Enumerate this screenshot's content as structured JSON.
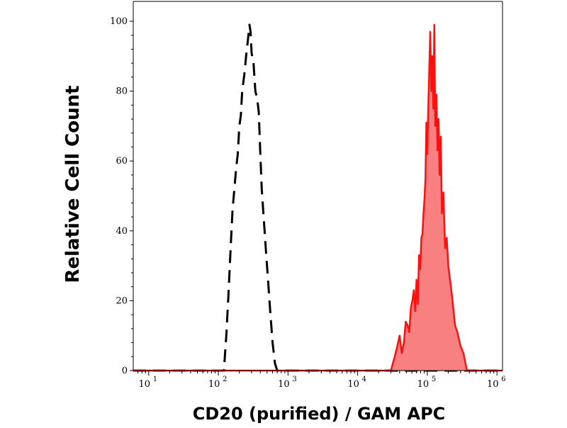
{
  "chart_data": {
    "type": "area",
    "xlabel": "CD20 (purified) / GAM APC",
    "ylabel": "Relative Cell Count",
    "xscale": "log",
    "xlim": [
      6,
      1200000
    ],
    "ylim": [
      0,
      100
    ],
    "grid": false,
    "x_ticks": [
      {
        "value": 10,
        "base": "10",
        "exp": "1"
      },
      {
        "value": 100,
        "base": "10",
        "exp": "2"
      },
      {
        "value": 1000,
        "base": "10",
        "exp": "3"
      },
      {
        "value": 10000,
        "base": "10",
        "exp": "4"
      },
      {
        "value": 100000,
        "base": "10",
        "exp": "5"
      },
      {
        "value": 1000000,
        "base": "10",
        "exp": "6"
      }
    ],
    "y_ticks": [
      {
        "value": 0,
        "label": "0"
      },
      {
        "value": 20,
        "label": "20"
      },
      {
        "value": 40,
        "label": "40"
      },
      {
        "value": 60,
        "label": "60"
      },
      {
        "value": 80,
        "label": "80"
      },
      {
        "value": 100,
        "label": "100"
      }
    ],
    "series": [
      {
        "style": "dashed",
        "color": "#000000",
        "fill": "none",
        "x": [
          6,
          120,
          130,
          140,
          150,
          160,
          170,
          180,
          190,
          200,
          210,
          220,
          230,
          240,
          250,
          260,
          270,
          280,
          290,
          300,
          310,
          320,
          340,
          360,
          380,
          400,
          420,
          450,
          480,
          520,
          560,
          600,
          650,
          700,
          1200000
        ],
        "y": [
          0,
          0,
          10,
          22,
          35,
          46,
          52,
          58,
          62,
          70,
          73,
          80,
          83,
          86,
          90,
          93,
          96,
          99,
          97,
          91,
          89,
          88,
          80,
          78,
          74,
          62,
          52,
          43,
          35,
          25,
          16,
          8,
          2,
          0,
          0
        ]
      },
      {
        "style": "solid",
        "color": "#ff1010",
        "fill": "#f88080",
        "x": [
          6,
          30000,
          34000,
          37000,
          40000,
          43000,
          46000,
          49000,
          52000,
          55000,
          58000,
          61000,
          64000,
          67000,
          70000,
          73000,
          76000,
          79000,
          82000,
          85000,
          88000,
          91000,
          94000,
          97000,
          100000,
          103000,
          106000,
          110000,
          114000,
          118000,
          122000,
          126000,
          130000,
          135000,
          140000,
          145000,
          150000,
          156000,
          162000,
          170000,
          180000,
          190000,
          200000,
          215000,
          230000,
          250000,
          270000,
          300000,
          330000,
          370000,
          1200000
        ],
        "y": [
          0,
          0,
          4,
          7,
          10,
          5,
          8,
          14,
          13,
          11,
          18,
          20,
          23,
          17,
          26,
          19,
          33,
          29,
          38,
          39,
          45,
          49,
          55,
          71,
          62,
          75,
          84,
          97,
          80,
          90,
          75,
          99,
          70,
          79,
          63,
          72,
          56,
          67,
          45,
          51,
          35,
          38,
          30,
          25,
          20,
          13,
          11,
          7,
          5,
          0,
          0
        ]
      }
    ]
  }
}
